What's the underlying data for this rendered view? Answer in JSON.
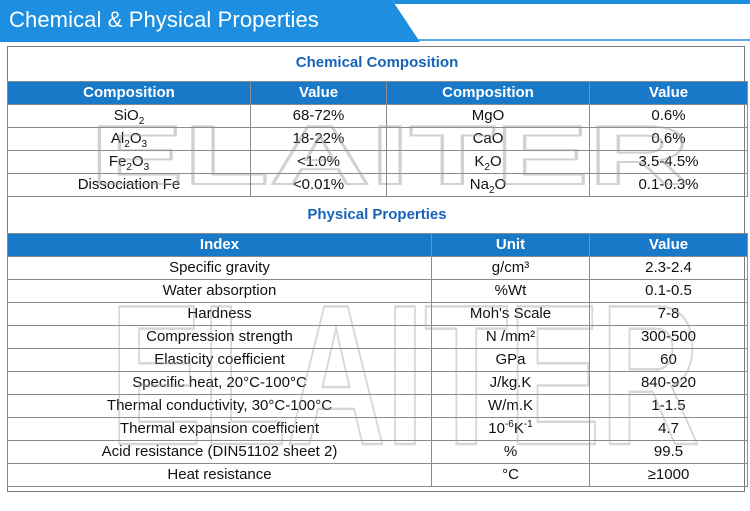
{
  "header": {
    "title": "Chemical & Physical Properties"
  },
  "colors": {
    "banner": "#1e8fe0",
    "table_header": "#1979c9",
    "section_title": "#1763b8"
  },
  "watermark": "ELAITER",
  "chemical": {
    "title": "Chemical Composition",
    "headers": [
      "Composition",
      "Value",
      "Composition",
      "Value"
    ],
    "rows": [
      {
        "c1": "SiO2",
        "v1": "68-72%",
        "c2": "MgO",
        "v2": "0.6%"
      },
      {
        "c1": "Al2O3",
        "v1": "18-22%",
        "c2": "CaO",
        "v2": "0.6%"
      },
      {
        "c1": "Fe2O3",
        "v1": "<1.0%",
        "c2": "K2O",
        "v2": "3.5-4.5%"
      },
      {
        "c1": "Dissociation Fe",
        "v1": "<0.01%",
        "c2": "Na2O",
        "v2": "0.1-0.3%"
      }
    ]
  },
  "physical": {
    "title": "Physical Properties",
    "headers": [
      "Index",
      "Unit",
      "Value"
    ],
    "rows": [
      {
        "index": "Specific gravity",
        "unit": "g/cm³",
        "value": "2.3-2.4"
      },
      {
        "index": "Water absorption",
        "unit": "%Wt",
        "value": "0.1-0.5"
      },
      {
        "index": "Hardness",
        "unit": "Moh's Scale",
        "value": "7-8"
      },
      {
        "index": "Compression strength",
        "unit": "N /mm²",
        "value": "300-500"
      },
      {
        "index": "Elasticity coefficient",
        "unit": "GPa",
        "value": "60"
      },
      {
        "index": "Specific heat, 20°C-100°C",
        "unit": "J/kg.K",
        "value": "840-920"
      },
      {
        "index": "Thermal conductivity, 30°C-100°C",
        "unit": "W/m.K",
        "value": "1-1.5"
      },
      {
        "index": "Thermal expansion coefficient",
        "unit": "10-6K-1",
        "value": "4.7"
      },
      {
        "index": "Acid resistance (DIN51102 sheet 2)",
        "unit": "%",
        "value": "99.5"
      },
      {
        "index": "Heat resistance",
        "unit": "°C",
        "value": "≥1000"
      }
    ]
  }
}
